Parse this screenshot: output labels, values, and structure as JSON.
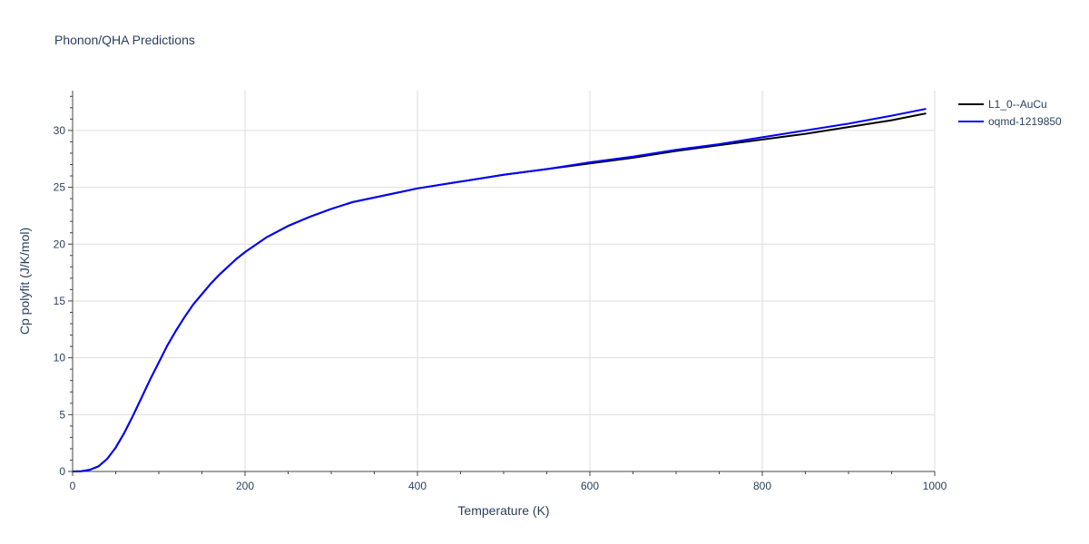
{
  "title": "Phonon/QHA Predictions",
  "colors": {
    "grid": "#dddddd",
    "axis": "#444444",
    "text": "#2a3f5f"
  },
  "chart_data": {
    "type": "line",
    "title": "Phonon/QHA Predictions",
    "xlabel": "Temperature (K)",
    "ylabel": "Cp polyfit (J/K/mol)",
    "xlim": [
      0,
      1000
    ],
    "ylim": [
      0,
      33.5
    ],
    "grid": true,
    "legend_position": "top-right",
    "x_ticks": [
      0,
      200,
      400,
      600,
      800,
      1000
    ],
    "y_ticks": [
      0,
      5,
      10,
      15,
      20,
      25,
      30
    ],
    "series": [
      {
        "name": "L1_0--AuCu",
        "color": "#000000",
        "x": [
          0,
          10,
          20,
          30,
          40,
          50,
          60,
          70,
          80,
          90,
          100,
          110,
          120,
          130,
          140,
          150,
          160,
          170,
          180,
          190,
          200,
          225,
          250,
          275,
          300,
          325,
          350,
          375,
          400,
          450,
          500,
          550,
          600,
          650,
          700,
          750,
          800,
          850,
          900,
          950,
          990
        ],
        "y": [
          0,
          0.02,
          0.15,
          0.45,
          1.1,
          2.1,
          3.4,
          4.9,
          6.5,
          8.1,
          9.6,
          11.1,
          12.4,
          13.6,
          14.7,
          15.6,
          16.5,
          17.3,
          18.0,
          18.7,
          19.3,
          20.6,
          21.6,
          22.4,
          23.1,
          23.7,
          24.1,
          24.5,
          24.9,
          25.5,
          26.1,
          26.6,
          27.1,
          27.6,
          28.2,
          28.7,
          29.2,
          29.7,
          30.3,
          30.9,
          31.5
        ]
      },
      {
        "name": "oqmd-1219850",
        "color": "#0000ff",
        "x": [
          0,
          10,
          20,
          30,
          40,
          50,
          60,
          70,
          80,
          90,
          100,
          110,
          120,
          130,
          140,
          150,
          160,
          170,
          180,
          190,
          200,
          225,
          250,
          275,
          300,
          325,
          350,
          375,
          400,
          450,
          500,
          550,
          600,
          650,
          700,
          750,
          800,
          850,
          900,
          950,
          990
        ],
        "y": [
          0,
          0.02,
          0.15,
          0.45,
          1.1,
          2.1,
          3.4,
          4.9,
          6.5,
          8.1,
          9.6,
          11.1,
          12.4,
          13.6,
          14.7,
          15.6,
          16.5,
          17.3,
          18.0,
          18.7,
          19.3,
          20.6,
          21.6,
          22.4,
          23.1,
          23.7,
          24.1,
          24.5,
          24.9,
          25.5,
          26.1,
          26.6,
          27.2,
          27.7,
          28.3,
          28.8,
          29.4,
          30.0,
          30.6,
          31.3,
          31.9
        ]
      }
    ]
  }
}
